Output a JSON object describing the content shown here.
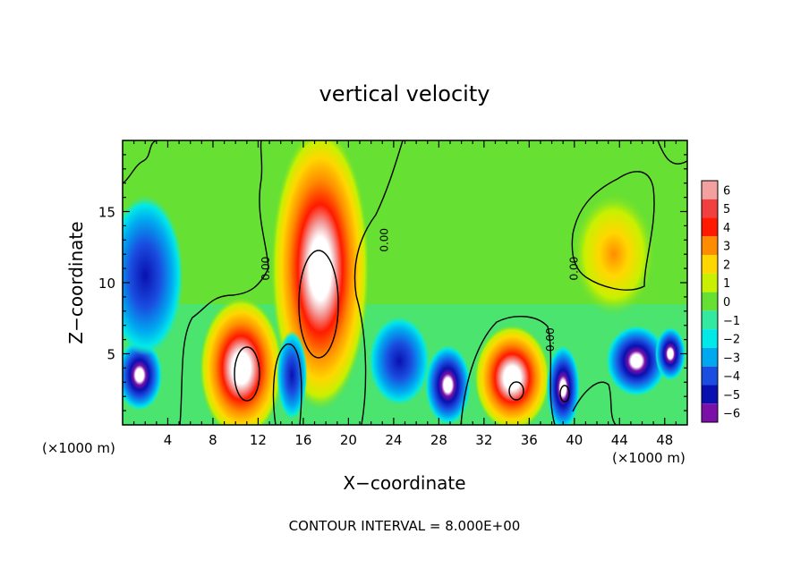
{
  "chart_data": {
    "type": "heatmap",
    "title": "vertical velocity",
    "xlabel": "X−coordinate",
    "ylabel": "Z−coordinate",
    "x_unit_label_left": "(×1000 m)",
    "x_unit_label_right": "(×1000 m)",
    "footer": "CONTOUR INTERVAL = 8.000E+00",
    "xlim": [
      0,
      50
    ],
    "ylim": [
      0,
      20
    ],
    "x_ticks": [
      4,
      8,
      12,
      16,
      20,
      24,
      28,
      32,
      36,
      40,
      44,
      48
    ],
    "y_ticks": [
      5,
      10,
      15
    ],
    "colorbar": {
      "levels": [
        6,
        5,
        4,
        3,
        2,
        1,
        0,
        -1,
        -2,
        -3,
        -4,
        -5,
        -6
      ],
      "labels": [
        "6",
        "5",
        "4",
        "3",
        "2",
        "1",
        "0",
        "−1",
        "−2",
        "−3",
        "−4",
        "−5",
        "−6"
      ],
      "colors": [
        "#f2a0a0",
        "#f04040",
        "#ff1a00",
        "#ff8c00",
        "#ffd700",
        "#c8f000",
        "#66e033",
        "#33e8a0",
        "#00e8e8",
        "#00a8f0",
        "#1a4ee0",
        "#0a10b0",
        "#7a10a8"
      ]
    },
    "contour_labels": [
      {
        "text": "0.00",
        "x": 13.0,
        "z": 11.0
      },
      {
        "text": "0.00",
        "x": 23.5,
        "z": 13.0
      },
      {
        "text": "0.00",
        "x": 40.3,
        "z": 11.0
      },
      {
        "text": "0.00",
        "x": 38.2,
        "z": 6.0
      }
    ],
    "field_features": [
      {
        "x": 17.5,
        "z": 11.0,
        "w": 6.5,
        "h": 16,
        "value": 6
      },
      {
        "x": 10.5,
        "z": 4.0,
        "w": 5.5,
        "h": 8,
        "value": 6
      },
      {
        "x": 34.5,
        "z": 3.3,
        "w": 5.0,
        "h": 6,
        "value": 6
      },
      {
        "x": 28.8,
        "z": 2.8,
        "w": 3.0,
        "h": 4.5,
        "value": -6
      },
      {
        "x": 39.0,
        "z": 2.6,
        "w": 2.2,
        "h": 4.8,
        "value": -6
      },
      {
        "x": 1.5,
        "z": 3.5,
        "w": 3.0,
        "h": 4.0,
        "value": -5
      },
      {
        "x": 15.0,
        "z": 3.5,
        "w": 2.0,
        "h": 5.0,
        "value": -4
      },
      {
        "x": 45.5,
        "z": 4.5,
        "w": 4.0,
        "h": 4.0,
        "value": -5
      },
      {
        "x": 48.5,
        "z": 5.0,
        "w": 2.0,
        "h": 3.0,
        "value": -5
      },
      {
        "x": 2.0,
        "z": 10.5,
        "w": 5.0,
        "h": 9.0,
        "value": -3
      },
      {
        "x": 24.5,
        "z": 4.5,
        "w": 4.0,
        "h": 5.0,
        "value": -4
      },
      {
        "x": 43.5,
        "z": 12.0,
        "w": 5.5,
        "h": 7.0,
        "value": 2
      }
    ]
  }
}
